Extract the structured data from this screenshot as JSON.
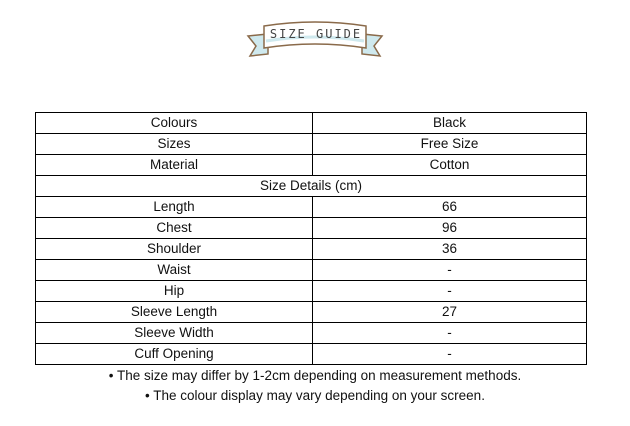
{
  "banner": {
    "title": "SIZE GUIDE"
  },
  "rows_top": [
    {
      "label": "Colours",
      "value": "Black"
    },
    {
      "label": "Sizes",
      "value": "Free Size"
    },
    {
      "label": "Material",
      "value": "Cotton"
    }
  ],
  "section_header": "Size Details (cm)",
  "rows_details": [
    {
      "label": "Length",
      "value": "66"
    },
    {
      "label": "Chest",
      "value": "96"
    },
    {
      "label": "Shoulder",
      "value": "36"
    },
    {
      "label": "Waist",
      "value": "-"
    },
    {
      "label": "Hip",
      "value": "-"
    },
    {
      "label": "Sleeve Length",
      "value": "27"
    },
    {
      "label": "Sleeve Width",
      "value": "-"
    },
    {
      "label": "Cuff Opening",
      "value": "-"
    }
  ],
  "notes": [
    "• The size may differ by 1-2cm depending on measurement methods.",
    "• The colour display may vary depending on your screen."
  ]
}
